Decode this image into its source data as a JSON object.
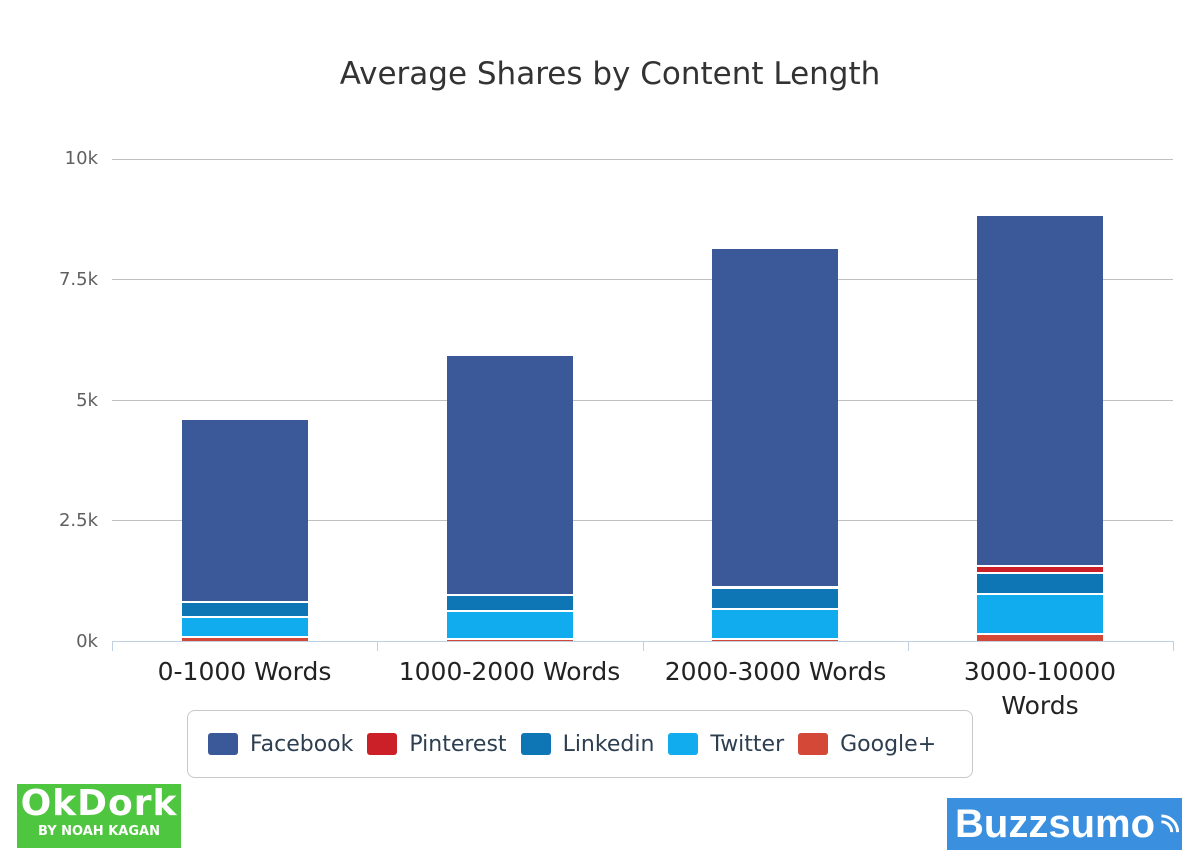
{
  "chart_data": {
    "type": "bar",
    "stacked": true,
    "title": "Average Shares by Content Length",
    "xlabel": "",
    "ylabel": "",
    "ylim": [
      0,
      10000
    ],
    "yticks": [
      "0k",
      "2.5k",
      "5k",
      "7.5k",
      "10k"
    ],
    "grid": true,
    "legend_position": "bottom",
    "categories": [
      "0-1000 Words",
      "1000-2000 Words",
      "2000-3000 Words",
      "3000-10000 Words"
    ],
    "series": [
      {
        "name": "Facebook",
        "color": "#3b5998",
        "values": [
          3780,
          4980,
          7030,
          7280
        ]
      },
      {
        "name": "Pinterest",
        "color": "#cb2027",
        "values": [
          20,
          10,
          10,
          140
        ]
      },
      {
        "name": "Linkedin",
        "color": "#0e76b4",
        "values": [
          300,
          330,
          450,
          440
        ]
      },
      {
        "name": "Twitter",
        "color": "#10aced",
        "values": [
          420,
          580,
          620,
          830
        ]
      },
      {
        "name": "Google+",
        "color": "#d34836",
        "values": [
          100,
          60,
          60,
          160
        ]
      }
    ],
    "totals": [
      4620,
      5960,
      8180,
      8850
    ]
  },
  "chart": {
    "title": "Average Shares by Content Length",
    "y_labels": [
      "10k",
      "7.5k",
      "5k",
      "2.5k",
      "0k"
    ],
    "x_labels": [
      "0-1000 Words",
      "1000-2000 Words",
      "2000-3000 Words",
      "3000-10000 Words"
    ]
  },
  "legend": {
    "items": [
      {
        "label": "Facebook",
        "color": "#3b5998"
      },
      {
        "label": "Pinterest",
        "color": "#cb2027"
      },
      {
        "label": "Linkedin",
        "color": "#0e76b4"
      },
      {
        "label": "Twitter",
        "color": "#10aced"
      },
      {
        "label": "Google+",
        "color": "#d34836"
      }
    ]
  },
  "logos": {
    "okdork": {
      "name": "OkDork",
      "tagline": "BY NOAH KAGAN"
    },
    "buzzsumo": {
      "name": "Buzzsumo"
    }
  }
}
